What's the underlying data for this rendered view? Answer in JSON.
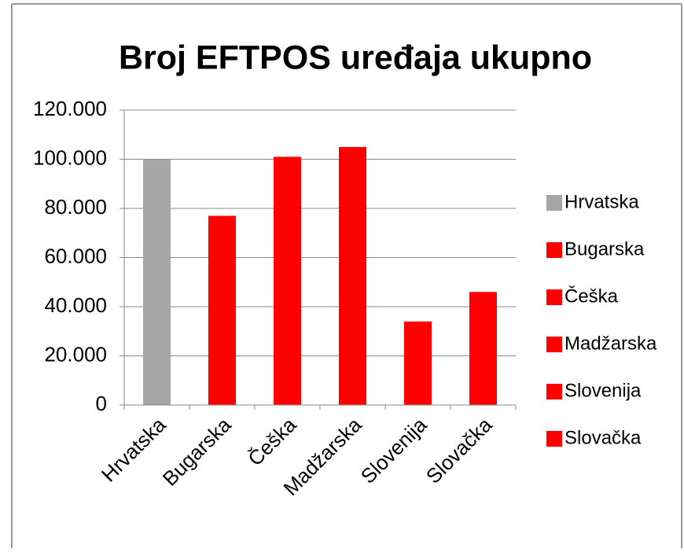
{
  "chart_data": {
    "type": "bar",
    "title": "Broj EFTPOS uređaja ukupno",
    "categories": [
      "Hrvatska",
      "Bugarska",
      "Češka",
      "Madžarska",
      "Slovenija",
      "Slovačka"
    ],
    "values": [
      100000,
      77000,
      101000,
      105000,
      34000,
      46000
    ],
    "colors": [
      "#a6a6a6",
      "#ff0000",
      "#ff0000",
      "#ff0000",
      "#ff0000",
      "#ff0000"
    ],
    "ylim": [
      0,
      120000
    ],
    "yticks": [
      0,
      {
        "value": 20000,
        "label": "20.000"
      },
      {
        "value": 40000,
        "label": "40.000"
      },
      {
        "value": 60000,
        "label": "60.000"
      },
      {
        "value": 80000,
        "label": "80.000"
      },
      {
        "value": 100000,
        "label": "100.000"
      },
      {
        "value": 120000,
        "label": "120.000"
      }
    ],
    "grid": true,
    "legend": "right"
  }
}
